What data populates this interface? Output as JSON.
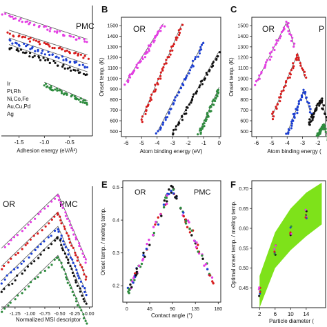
{
  "colors": {
    "Ir": "#e43ee3",
    "PtRh": "#d81c1c",
    "NiCoFe": "#1c3fd2",
    "AuCuPd": "#111111",
    "Ag": "#2e8b3e",
    "band": "#7ee21a",
    "ref_line": "#555555"
  },
  "chart_data": [
    {
      "panel": "A",
      "type": "scatter",
      "annotations": [
        "PMC"
      ],
      "legend_labels": [
        "Ir",
        "Pt,Rh",
        "Ni,Co,Fe",
        "Au,Cu,Pd",
        "Ag"
      ],
      "xlabel": "Adhesion energy (eV/Å²)",
      "ylabel": "",
      "xticks": [
        "-1.5",
        "-1.0",
        "-0.5",
        "0.0"
      ],
      "xlim": [
        -1.85,
        -0.05
      ],
      "ylim": [
        0,
        1
      ],
      "series": [
        {
          "color_key": "Ir",
          "start": [
            -1.8,
            0.93
          ],
          "end": [
            -0.15,
            0.72
          ]
        },
        {
          "color_key": "PtRh",
          "start": [
            -1.7,
            0.79
          ],
          "end": [
            -0.15,
            0.6
          ]
        },
        {
          "color_key": "NiCoFe",
          "start": [
            -1.7,
            0.73
          ],
          "end": [
            -0.15,
            0.53
          ]
        },
        {
          "color_key": "AuCuPd",
          "start": [
            -1.7,
            0.68
          ],
          "end": [
            -0.15,
            0.47
          ]
        },
        {
          "color_key": "Ag",
          "start": [
            -1.0,
            0.39
          ],
          "end": [
            -0.15,
            0.25
          ]
        }
      ]
    },
    {
      "panel": "B",
      "type": "scatter",
      "annotations": [
        "OR"
      ],
      "xlabel": "Atom binding energy (eV)",
      "ylabel": "Onset temp. (K)",
      "xticks": [
        "-6",
        "-5",
        "-4",
        "-3",
        "-2",
        "-1",
        "0"
      ],
      "yticks": [
        "500",
        "600",
        "700",
        "800",
        "900",
        "1000",
        "1100",
        "1200",
        "1300",
        "1400",
        "1500"
      ],
      "xlim": [
        -6.3,
        0.1
      ],
      "ylim": [
        450,
        1580
      ],
      "series": [
        {
          "color_key": "Ir",
          "start": [
            -6.0,
            950
          ],
          "end": [
            -3.6,
            1500
          ]
        },
        {
          "color_key": "PtRh",
          "start": [
            -5.0,
            600
          ],
          "end": [
            -2.4,
            1500
          ]
        },
        {
          "color_key": "NiCoFe",
          "start": [
            -4.0,
            470
          ],
          "end": [
            -1.0,
            1330
          ]
        },
        {
          "color_key": "AuCuPd",
          "start": [
            -3.0,
            470
          ],
          "end": [
            0.0,
            1240
          ]
        },
        {
          "color_key": "Ag",
          "start": [
            -1.3,
            470
          ],
          "end": [
            0.0,
            900
          ]
        }
      ]
    },
    {
      "panel": "C",
      "type": "scatter",
      "annotations": [
        "OR",
        "P"
      ],
      "xlabel": "Atom binding energy (",
      "ylabel": "Onset temp. (K)",
      "xticks": [
        "-6",
        "-5",
        "-4",
        "-3",
        "-2"
      ],
      "yticks": [
        "500",
        "600",
        "700",
        "800",
        "900",
        "1000",
        "1100",
        "1200",
        "1300",
        "1400",
        "1500"
      ],
      "xlim": [
        -6.3,
        -1.5
      ],
      "ylim": [
        450,
        1580
      ],
      "series": [
        {
          "color_key": "Ir",
          "start": [
            -6.0,
            950
          ],
          "end": [
            -4.0,
            1530
          ]
        },
        {
          "color_key": "PtRh",
          "start": [
            -5.0,
            620
          ],
          "end": [
            -3.3,
            1230
          ]
        },
        {
          "color_key": "NiCoFe",
          "start": [
            -4.0,
            470
          ],
          "end": [
            -2.9,
            880
          ]
        },
        {
          "color_key": "AuCuPd",
          "start": [
            -2.6,
            560
          ],
          "end": [
            -1.8,
            800
          ]
        },
        {
          "color_key": "Ag",
          "start": [
            -2.0,
            460
          ],
          "end": [
            -1.6,
            560
          ]
        }
      ]
    },
    {
      "panel": "D",
      "type": "scatter",
      "annotations": [
        "OR",
        "PMC"
      ],
      "xlabel": "Normalized MSI descriptor",
      "ylabel": "",
      "xticks": [
        "-1.25",
        "-1.00",
        "-0.75",
        "-0.50",
        "-0.25",
        "0.00"
      ],
      "xlim": [
        -1.48,
        0.05
      ],
      "ylim": [
        0,
        1
      ],
      "peaks": [
        {
          "color_key": "Ir",
          "x": -0.53,
          "y": 0.92
        },
        {
          "color_key": "PtRh",
          "x": -0.53,
          "y": 0.77
        },
        {
          "color_key": "NiCoFe",
          "x": -0.53,
          "y": 0.65
        },
        {
          "color_key": "AuCuPd",
          "x": -0.53,
          "y": 0.57
        },
        {
          "color_key": "Ag",
          "x": -0.53,
          "y": 0.41
        }
      ]
    },
    {
      "panel": "E",
      "type": "scatter",
      "annotations": [
        "OR",
        "PMC"
      ],
      "xlabel": "Contact angle (°)",
      "ylabel": "Onset temp. / melting temp.",
      "xticks": [
        "0",
        "45",
        "90",
        "135",
        "180"
      ],
      "yticks": [
        "0.2",
        "0.3",
        "0.4",
        "0.5"
      ],
      "xlim": [
        -8,
        185
      ],
      "ylim": [
        0.15,
        0.52
      ],
      "trend_peak": {
        "x": 88,
        "y": 0.5
      },
      "trend_left": {
        "x": 0,
        "y": 0.17
      },
      "trend_right": {
        "x": 170,
        "y": 0.21
      }
    },
    {
      "panel": "F",
      "type": "scatter",
      "xlabel": "Particle diameter (",
      "ylabel": "Optimal onset temp. / melting temp.",
      "xticks": [
        "2",
        "6",
        "10",
        "14"
      ],
      "yticks": [
        "0.45",
        "0.50",
        "0.55",
        "0.60",
        "0.65",
        "0.70"
      ],
      "xlim": [
        0,
        19
      ],
      "ylim": [
        0.4,
        0.72
      ],
      "points": [
        {
          "x": 2,
          "y": 0.44
        },
        {
          "x": 6,
          "y": 0.545
        },
        {
          "x": 10,
          "y": 0.595
        },
        {
          "x": 14,
          "y": 0.635
        }
      ],
      "band_upper": [
        [
          2,
          0.48
        ],
        [
          6,
          0.59
        ],
        [
          10,
          0.65
        ],
        [
          14,
          0.69
        ],
        [
          18,
          0.715
        ]
      ],
      "band_lower": [
        [
          2,
          0.4
        ],
        [
          6,
          0.5
        ],
        [
          10,
          0.545
        ],
        [
          14,
          0.58
        ],
        [
          18,
          0.61
        ]
      ]
    }
  ],
  "panel_labels": {
    "B": "B",
    "C": "C",
    "E": "E",
    "F": "F"
  },
  "legend": {
    "title_lines": [
      "Ir",
      "Pt,Rh",
      "Ni,Co,Fe",
      "Au,Cu,Pd",
      "Ag"
    ]
  }
}
